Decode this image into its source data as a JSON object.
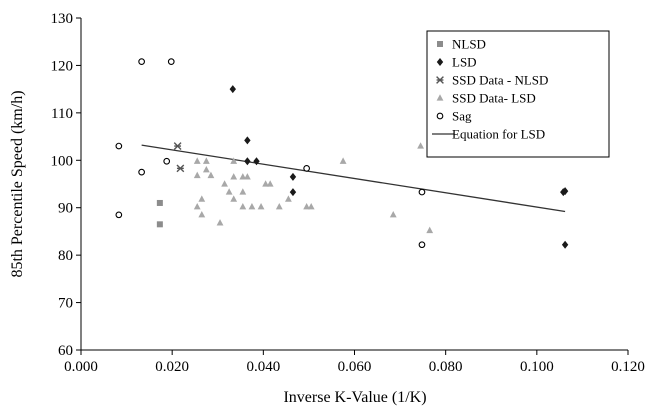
{
  "chart_data": {
    "type": "scatter",
    "xlabel": "Inverse K-Value (1/K)",
    "ylabel": "85th Percentile Speed (km/h)",
    "xlim": [
      0,
      0.12
    ],
    "ylim": [
      60,
      130
    ],
    "x_ticks": [
      "0.000",
      "0.020",
      "0.040",
      "0.060",
      "0.080",
      "0.100",
      "0.120"
    ],
    "y_ticks": [
      "60",
      "70",
      "80",
      "90",
      "100",
      "110",
      "120",
      "130"
    ],
    "grid": false,
    "legend_position": "top-right",
    "series": [
      {
        "name": "NLSD",
        "marker": "square",
        "color": "#8c8c8c",
        "points": [
          [
            0.0173,
            91.0
          ],
          [
            0.0173,
            86.5
          ]
        ]
      },
      {
        "name": "LSD",
        "marker": "diamond",
        "color": "#1a1a1a",
        "points": [
          [
            0.0333,
            115.0
          ],
          [
            0.0365,
            104.2
          ],
          [
            0.0365,
            99.8
          ],
          [
            0.0385,
            99.8
          ],
          [
            0.0465,
            96.5
          ],
          [
            0.0465,
            93.3
          ],
          [
            0.1058,
            93.3
          ],
          [
            0.1062,
            93.5
          ],
          [
            0.1062,
            82.2
          ]
        ]
      },
      {
        "name": "SSD Data - NLSD",
        "marker": "asterisk",
        "color": "#555555",
        "points": [
          [
            0.0212,
            103.0
          ],
          [
            0.0218,
            98.3
          ]
        ]
      },
      {
        "name": "SSD Data- LSD",
        "marker": "triangle",
        "color": "#a8a8a8",
        "points": [
          [
            0.0255,
            99.8
          ],
          [
            0.0275,
            99.8
          ],
          [
            0.0335,
            99.8
          ],
          [
            0.0575,
            99.8
          ],
          [
            0.0745,
            103.0
          ],
          [
            0.0255,
            96.8
          ],
          [
            0.0285,
            96.8
          ],
          [
            0.0335,
            96.5
          ],
          [
            0.0355,
            96.5
          ],
          [
            0.0365,
            96.5
          ],
          [
            0.0275,
            98.0
          ],
          [
            0.0315,
            95.0
          ],
          [
            0.0405,
            95.0
          ],
          [
            0.0415,
            95.0
          ],
          [
            0.0325,
            93.3
          ],
          [
            0.0355,
            93.3
          ],
          [
            0.0265,
            91.8
          ],
          [
            0.0335,
            91.8
          ],
          [
            0.0455,
            91.8
          ],
          [
            0.0255,
            90.2
          ],
          [
            0.0355,
            90.2
          ],
          [
            0.0375,
            90.2
          ],
          [
            0.0395,
            90.2
          ],
          [
            0.0435,
            90.2
          ],
          [
            0.0495,
            90.2
          ],
          [
            0.0505,
            90.2
          ],
          [
            0.0265,
            88.5
          ],
          [
            0.0685,
            88.5
          ],
          [
            0.0765,
            85.2
          ],
          [
            0.0305,
            86.8
          ]
        ]
      },
      {
        "name": "Sag",
        "marker": "circle",
        "color": "#000000",
        "points": [
          [
            0.0083,
            103.0
          ],
          [
            0.0083,
            88.5
          ],
          [
            0.0133,
            120.8
          ],
          [
            0.0198,
            120.8
          ],
          [
            0.0133,
            97.5
          ],
          [
            0.0188,
            99.8
          ],
          [
            0.0495,
            98.3
          ],
          [
            0.0748,
            93.3
          ],
          [
            0.0748,
            82.2
          ]
        ]
      },
      {
        "name": "Equation for LSD",
        "marker": "line",
        "color": "#333333",
        "line": [
          [
            0.0133,
            103.2
          ],
          [
            0.1062,
            89.2
          ]
        ]
      }
    ]
  }
}
